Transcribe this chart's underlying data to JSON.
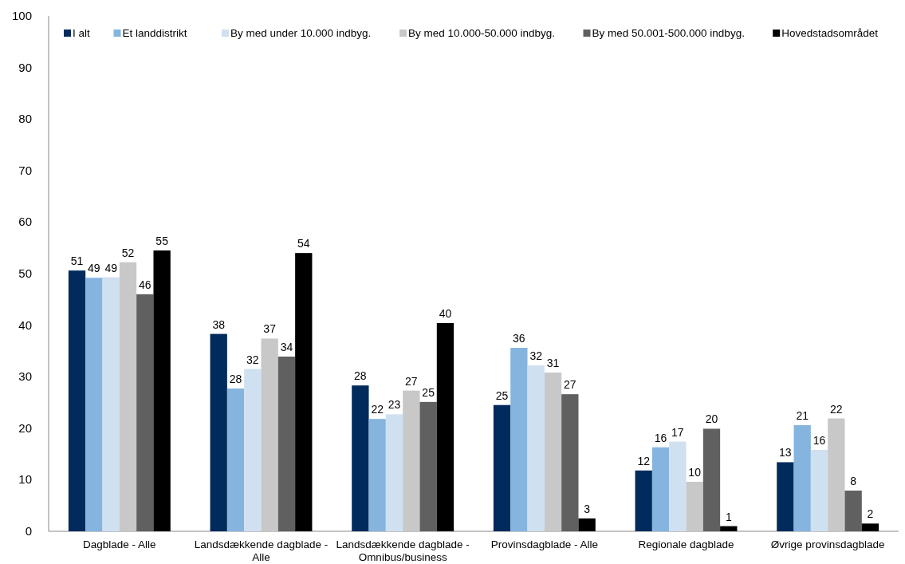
{
  "chart_data": {
    "type": "bar",
    "categories": [
      "Dagblade - Alle",
      "Landsdækkende dagblade - Alle",
      "Landsdækkende dagblade - Omnibus/business",
      "Provinsdagblade - Alle",
      "Regionale dagblade",
      "Øvrige provinsdagblade"
    ],
    "series": [
      {
        "name": "I alt",
        "color": "#002b5c",
        "values": [
          50.6,
          38.3,
          28.3,
          24.5,
          11.8,
          13.4
        ],
        "value_labels": [
          "51",
          "38",
          "28",
          "25",
          "12",
          "13"
        ]
      },
      {
        "name": "Et landdistrikt",
        "color": "#85b5de",
        "values": [
          49.2,
          27.7,
          21.8,
          35.6,
          16.3,
          20.6
        ],
        "value_labels": [
          "49",
          "28",
          "22",
          "36",
          "16",
          "21"
        ]
      },
      {
        "name": "By med under 10.000 indbyg.",
        "color": "#cfe0f1",
        "values": [
          49.3,
          31.5,
          22.7,
          32.2,
          17.4,
          15.8
        ],
        "value_labels": [
          "49",
          "32",
          "23",
          "32",
          "17",
          "16"
        ]
      },
      {
        "name": "By med 10.000-50.000 indbyg.",
        "color": "#c8c8c8",
        "values": [
          52.2,
          37.4,
          27.3,
          30.8,
          9.6,
          21.9
        ],
        "value_labels": [
          "52",
          "37",
          "27",
          "31",
          "10",
          "22"
        ]
      },
      {
        "name": "By med 50.001-500.000 indbyg.",
        "color": "#606060",
        "values": [
          46.0,
          33.9,
          25.1,
          26.6,
          19.9,
          7.9
        ],
        "value_labels": [
          "46",
          "34",
          "25",
          "27",
          "20",
          "8"
        ]
      },
      {
        "name": "Hovedstadsområdet",
        "color": "#000000",
        "values": [
          54.5,
          54.0,
          40.4,
          2.5,
          1.0,
          1.5
        ],
        "value_labels": [
          "55",
          "54",
          "40",
          "3",
          "1",
          "2"
        ]
      }
    ],
    "ylim": [
      0,
      100
    ],
    "yticks": [
      0,
      10,
      20,
      30,
      40,
      50,
      60,
      70,
      80,
      90,
      100
    ],
    "grid": false,
    "legend": "top"
  }
}
